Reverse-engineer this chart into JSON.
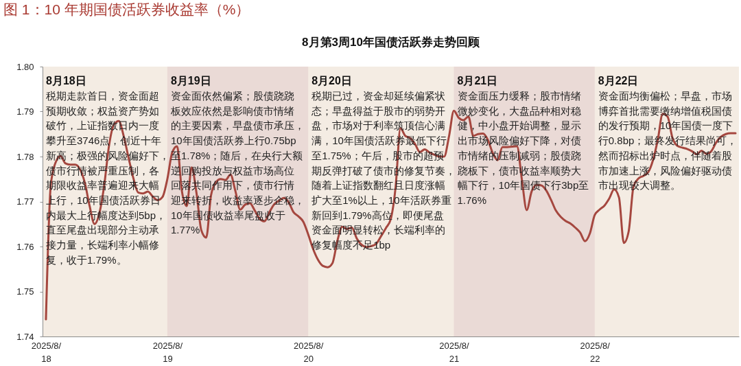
{
  "chart_data": {
    "type": "line",
    "title": "图 1：10 年期国债活跃券收益率（%）",
    "subtitle": "8月第3周10年国债活跃券走势回顾",
    "categories": [
      "2025/8/18",
      null,
      null,
      null,
      null,
      null,
      null,
      null,
      null,
      null,
      null,
      null,
      null,
      null,
      null,
      null,
      null,
      null,
      null,
      null,
      null,
      null,
      null,
      null,
      null,
      "2025/8/19",
      null,
      null,
      null,
      null,
      null,
      null,
      null,
      null,
      null,
      null,
      null,
      null,
      null,
      null,
      null,
      null,
      null,
      null,
      null,
      null,
      null,
      null,
      null,
      null,
      null,
      null,
      null,
      null,
      "2025/8/20",
      null,
      null,
      null,
      null,
      null,
      null,
      null,
      null,
      null,
      null,
      null,
      null,
      null,
      null,
      null,
      null,
      null,
      null,
      null,
      null,
      null,
      null,
      null,
      null,
      null,
      null,
      null,
      null,
      null,
      "2025/8/21",
      null,
      null,
      null,
      null,
      null,
      null,
      null,
      null,
      null,
      null,
      null,
      null,
      null,
      null,
      null,
      null,
      null,
      null,
      null,
      null,
      null,
      null,
      null,
      null,
      null,
      null,
      null,
      null,
      "2025/8/22",
      null,
      null,
      null,
      null,
      null,
      null,
      null,
      null,
      null,
      null,
      null,
      null,
      null,
      null,
      null,
      null,
      null,
      null,
      null,
      null,
      null,
      null,
      null,
      null,
      null,
      null,
      null,
      null,
      null
    ],
    "series": [
      {
        "color": "#a5473f",
        "line_style": "solid",
        "values": [
          1.7438,
          1.7737,
          1.7787,
          1.7801,
          1.7785,
          1.7782,
          1.7782,
          1.7772,
          1.7742,
          1.769,
          1.765,
          1.7674,
          1.7736,
          1.7825,
          1.7871,
          1.7879,
          1.7846,
          1.7798,
          1.7752,
          1.772,
          1.7718,
          1.7722,
          1.7711,
          1.7703,
          1.771,
          1.775,
          1.7809,
          1.7823,
          1.7723,
          1.769,
          1.7776,
          1.7719,
          1.7636,
          1.762,
          1.7714,
          1.7743,
          1.775,
          1.7748,
          1.776,
          1.7724,
          1.7682,
          1.7693,
          1.7696,
          1.768,
          1.7662,
          1.7656,
          1.7676,
          1.7694,
          1.7702,
          1.7708,
          1.7698,
          1.7676,
          1.7667,
          1.7655,
          1.7627,
          1.7595,
          1.7571,
          1.7557,
          1.7554,
          1.7563,
          1.7612,
          1.7644,
          1.7639,
          1.7642,
          1.7618,
          1.7604,
          1.7599,
          1.7601,
          1.7606,
          1.7623,
          1.7641,
          1.7661,
          1.7732,
          1.7863,
          1.7846,
          1.7841,
          1.7828,
          1.781,
          1.7816,
          1.7809,
          1.7804,
          1.78,
          1.78,
          1.7845,
          1.7902,
          1.7886,
          1.7881,
          1.7889,
          1.7846,
          1.785,
          1.7851,
          1.7837,
          1.7808,
          1.7792,
          1.7821,
          1.7821,
          1.7822,
          1.7823,
          1.7749,
          1.7681,
          1.7722,
          1.7737,
          1.7736,
          1.7725,
          1.7704,
          1.768,
          1.7666,
          1.7657,
          1.7651,
          1.7642,
          1.7631,
          1.7612,
          1.7629,
          1.767,
          1.7682,
          1.7691,
          1.7707,
          1.7727,
          1.7709,
          1.7608,
          1.7634,
          1.7734,
          1.7751,
          1.7757,
          1.7765,
          1.7792,
          1.7838,
          1.7895,
          1.7889,
          1.7842,
          1.7824,
          1.782,
          1.7817,
          1.7812,
          1.7805,
          1.7813,
          1.7806,
          1.7812,
          1.7831,
          1.7844,
          1.785,
          1.7852,
          1.7852
        ]
      }
    ],
    "ylim": [
      1.74,
      1.8
    ],
    "yticks": [
      1.74,
      1.75,
      1.76,
      1.77,
      1.78,
      1.79,
      {
        "value": 1.8,
        "label": "1.80"
      }
    ],
    "bands": [
      {
        "axis": "x",
        "from": "2025/8/19",
        "to": "2025/8/20",
        "color": "#eadad6"
      },
      {
        "axis": "x",
        "from": "2025/8/21",
        "to": "2025/8/22",
        "color": "#eadad6"
      }
    ],
    "annotations": [
      "8月18日",
      "税期走款首日，资金面超预期收敛；权益资产势如破竹，上证指数日内一度攀升至3746点，创近十年新高；极强的风险偏好下，债市行情被严重压制，各期限收益率普遍迎来大幅上行，10年国债活跃券日内最大上行幅度达到5bp，直至尾盘出现部分主动承接力量，长端利率小幅修复，收于1.79%。",
      "8月19日",
      "资金面依然偏紧；股债跷跷板效应依然是影响债市情绪的主要因素，早盘债市承压，10年国债活跃券上行0.75bp至1.78%；随后，在央行大额逆回购投放与权益市场高位回落共同作用下，债市行情迎来转折，收益率逐步企稳，10年国债收益率尾盘收于1.77%",
      "8月20日",
      "税期已过，资金却延续偏紧状态；早盘得益于股市的弱势开盘，市场对于利率筑顶信心满满，10年国债活跃券最低下行至1.75%；午后，股市的超预期反弹打破了债市的修复节奏，随着上证指数翻红且日度涨幅扩大至1%以上，10年活跃券重新回到1.79%高位，即便尾盘资金面明显转松，长端利率的修复幅度不足1bp",
      "8月21日",
      "资金面压力缓释；股市情绪微妙变化，大盘品种相对稳健，中小盘开始调整，显示出市场风险偏好下降，对债市情绪的压制减弱；股债跷跷板下，债市收益率顺势大幅下行，10年国债下行3bp至1.76%",
      "8月22日",
      "资金面均衡偏松；早盘，市场博弈首批需要缴纳增值税国债的发行预期，10年国债一度下行0.8bp；最终发行结果尚可，然而招标出炉时点，伴随着股市加速上涨，风险偏好驱动债市出现较大调整。"
    ]
  }
}
